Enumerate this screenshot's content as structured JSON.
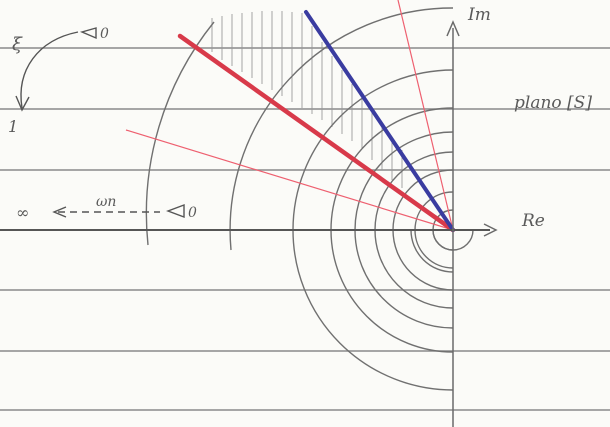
{
  "labels": {
    "imag_axis": "Im",
    "real_axis": "Re",
    "plane": "plano [S]",
    "zeta_symbol": "ξ",
    "zeta_start": "0",
    "zeta_end": "1",
    "infinity": "∞",
    "omega_n": "ωn",
    "omega_zero": "0"
  },
  "colors": {
    "paper": "#fbfbf8",
    "rule_line": "#8a8a8a",
    "pencil": "#707070",
    "hatch": "#9a9a9a",
    "red_heavy": "#d83a4a",
    "red_thin": "#ee6070",
    "blue": "#3a3ca0"
  },
  "notes": {
    "hatched_region": "zona entre la recta roja gruesa y la recta azul, fuera de un radio"
  }
}
